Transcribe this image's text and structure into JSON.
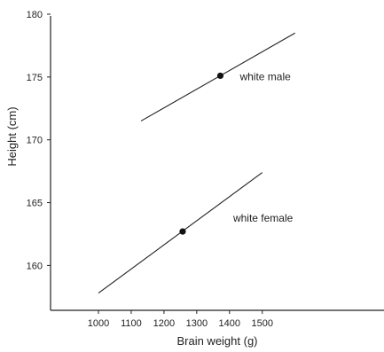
{
  "chart_data": {
    "type": "line",
    "title": "",
    "xlabel": "Brain weight (g)",
    "ylabel": "Height (cm)",
    "xlim": [
      880,
      1600
    ],
    "ylim": [
      157,
      180
    ],
    "x_ticks": [
      1000,
      1100,
      1200,
      1300,
      1400,
      1500
    ],
    "y_ticks": [
      160,
      165,
      170,
      175,
      180
    ],
    "grid": false,
    "legend": "none",
    "series": [
      {
        "label": "white male",
        "x": [
          1130,
          1600
        ],
        "y": [
          171.5,
          178.5
        ],
        "point": {
          "x": 1372,
          "y": 175.1
        }
      },
      {
        "label": "white female",
        "x": [
          1000,
          1500
        ],
        "y": [
          157.8,
          167.4
        ],
        "point": {
          "x": 1257,
          "y": 162.7
        }
      }
    ]
  }
}
